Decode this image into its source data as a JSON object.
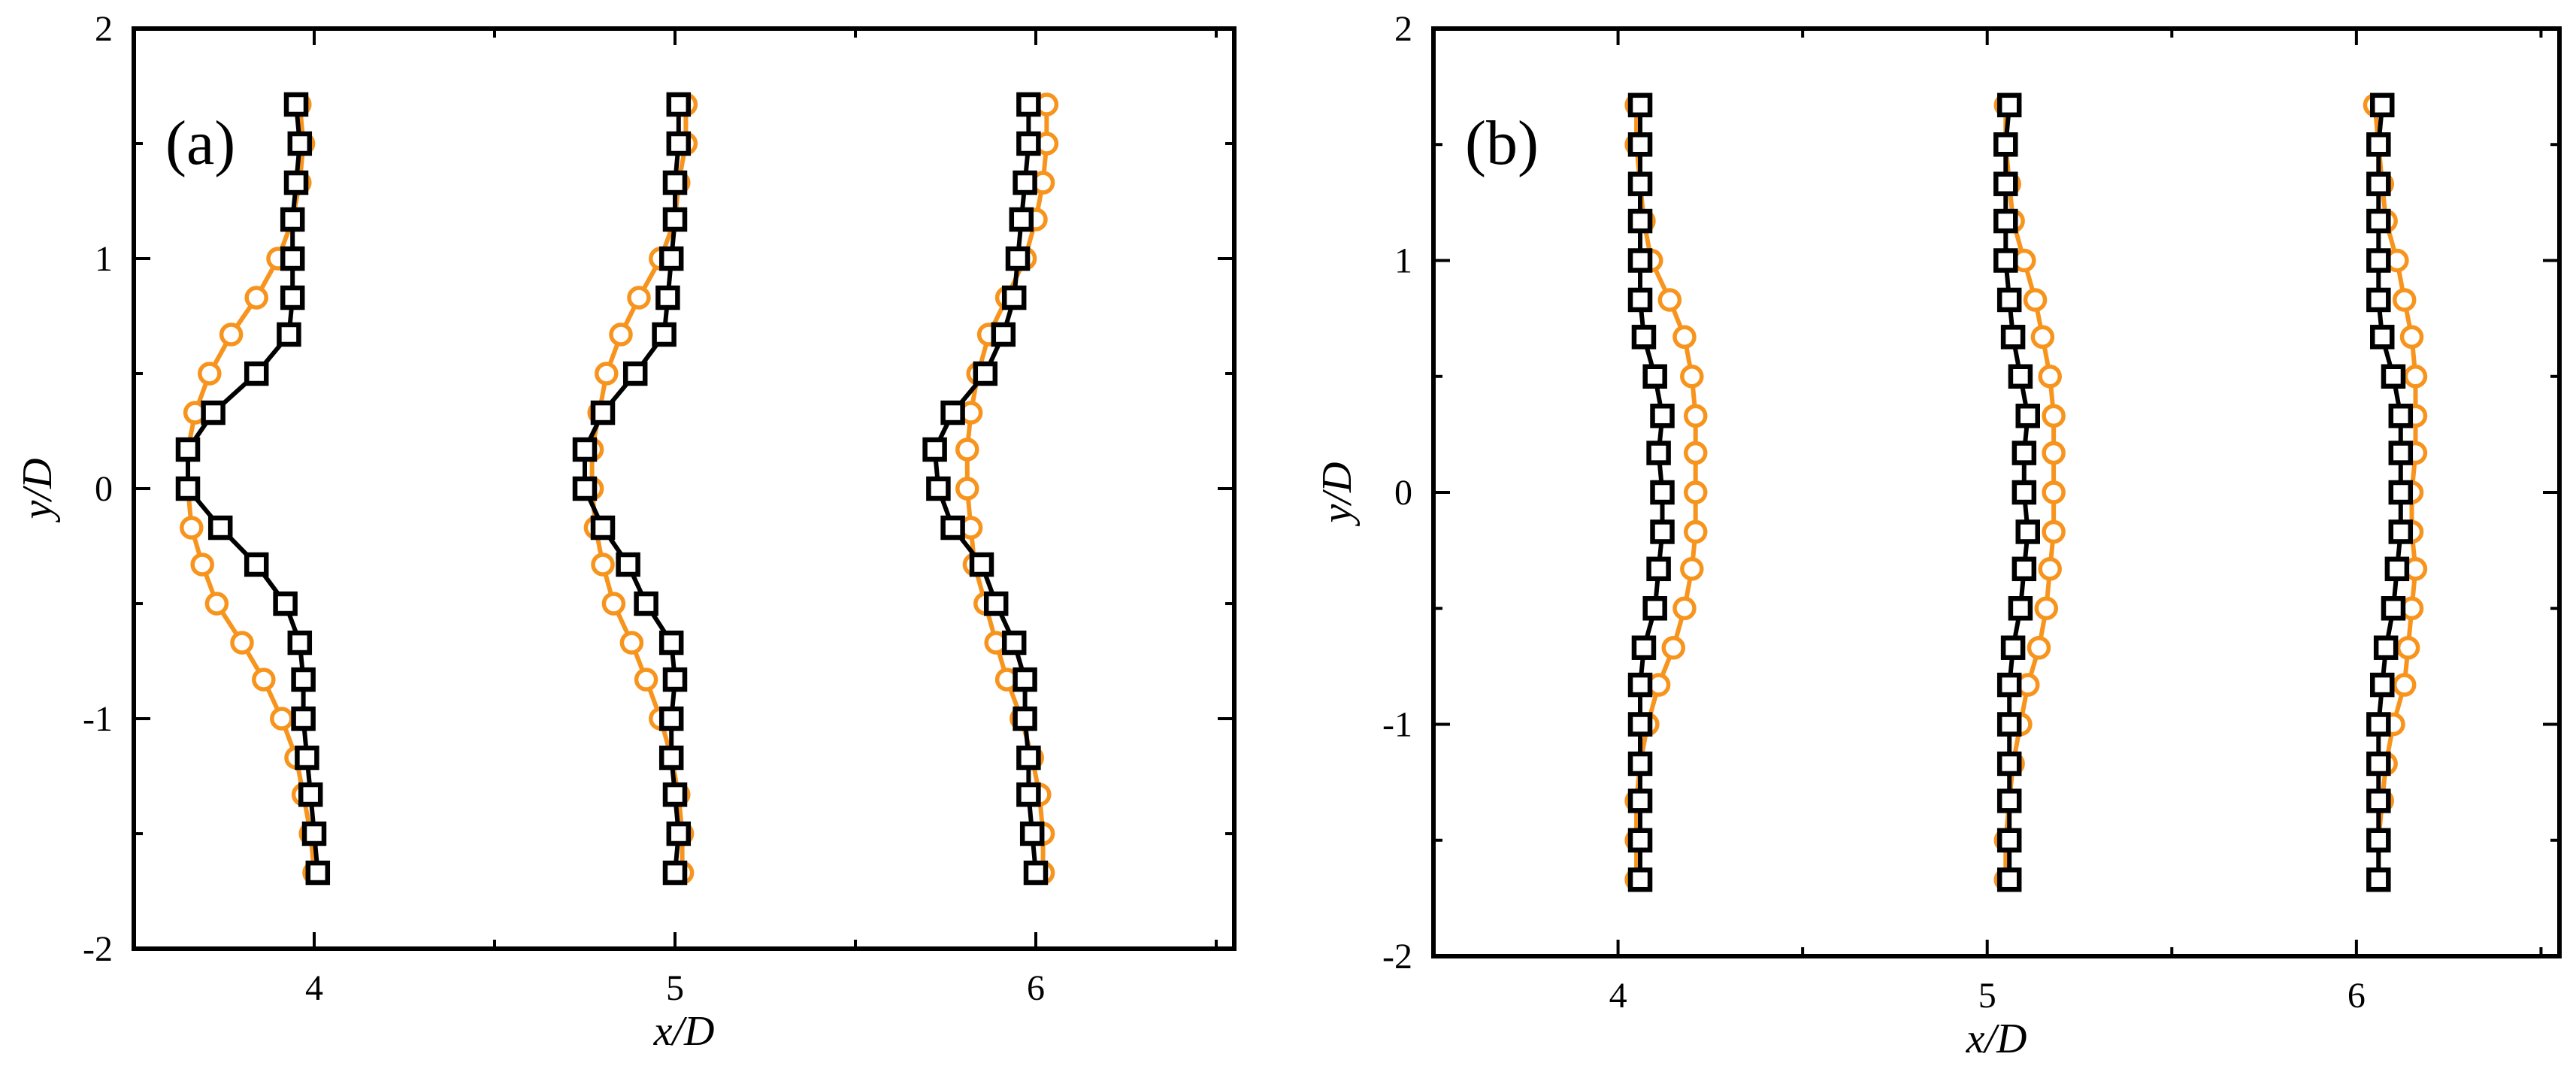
{
  "colors": {
    "series_a": "#F7941D",
    "series_b": "#000000",
    "axis": "#000000"
  },
  "chart_data": [
    {
      "type": "line",
      "panel": "(a)",
      "xlabel": "x/D",
      "ylabel": "y/D",
      "xlim": [
        3.5,
        6.55
      ],
      "ylim": [
        -2,
        2
      ],
      "xticks": [
        "4",
        "5",
        "6"
      ],
      "yticks": [
        "-2",
        "-1",
        "0",
        "1",
        "2"
      ],
      "marker_style": [
        "circle",
        "square"
      ],
      "y": [
        1.67,
        1.5,
        1.33,
        1.17,
        1.0,
        0.83,
        0.67,
        0.5,
        0.33,
        0.17,
        0.0,
        -0.17,
        -0.33,
        -0.5,
        -0.67,
        -0.83,
        -1.0,
        -1.17,
        -1.33,
        -1.5,
        -1.67
      ],
      "profiles": [
        {
          "station": 4,
          "series": [
            {
              "name": "series A (orange circles)",
              "x": [
                3.96,
                3.97,
                3.96,
                3.94,
                3.9,
                3.84,
                3.77,
                3.71,
                3.67,
                3.65,
                3.65,
                3.66,
                3.69,
                3.73,
                3.8,
                3.86,
                3.91,
                3.95,
                3.97,
                3.99,
                4.0
              ]
            },
            {
              "name": "series B (black squares)",
              "x": [
                3.95,
                3.96,
                3.95,
                3.94,
                3.94,
                3.94,
                3.93,
                3.84,
                3.72,
                3.65,
                3.65,
                3.74,
                3.84,
                3.92,
                3.96,
                3.97,
                3.97,
                3.98,
                3.99,
                4.0,
                4.01
              ]
            }
          ]
        },
        {
          "station": 5,
          "series": [
            {
              "name": "series A (orange circles)",
              "x": [
                5.03,
                5.03,
                5.01,
                5.0,
                4.96,
                4.9,
                4.85,
                4.81,
                4.79,
                4.77,
                4.77,
                4.78,
                4.8,
                4.83,
                4.88,
                4.92,
                4.96,
                4.99,
                5.01,
                5.02,
                5.02
              ]
            },
            {
              "name": "series B (black squares)",
              "x": [
                5.01,
                5.01,
                5.0,
                5.0,
                4.99,
                4.98,
                4.97,
                4.89,
                4.8,
                4.75,
                4.75,
                4.8,
                4.87,
                4.92,
                4.99,
                5.0,
                4.99,
                4.99,
                5.0,
                5.01,
                5.0
              ]
            }
          ]
        },
        {
          "station": 6,
          "series": [
            {
              "name": "series A (orange circles)",
              "x": [
                6.03,
                6.03,
                6.02,
                6.0,
                5.97,
                5.92,
                5.87,
                5.84,
                5.82,
                5.81,
                5.81,
                5.82,
                5.83,
                5.86,
                5.89,
                5.92,
                5.96,
                5.99,
                6.01,
                6.02,
                6.02
              ]
            },
            {
              "name": "series B (black squares)",
              "x": [
                5.98,
                5.98,
                5.97,
                5.96,
                5.95,
                5.94,
                5.91,
                5.86,
                5.77,
                5.72,
                5.73,
                5.77,
                5.85,
                5.89,
                5.94,
                5.97,
                5.97,
                5.98,
                5.98,
                5.99,
                6.0
              ]
            }
          ]
        }
      ]
    },
    {
      "type": "line",
      "panel": "(b)",
      "xlabel": "x/D",
      "ylabel": "y/D",
      "xlim": [
        3.5,
        6.55
      ],
      "ylim": [
        -2,
        2
      ],
      "xticks": [
        "4",
        "5",
        "6"
      ],
      "yticks": [
        "-2",
        "-1",
        "0",
        "1",
        "2"
      ],
      "marker_style": [
        "circle",
        "square"
      ],
      "y": [
        1.67,
        1.5,
        1.33,
        1.17,
        1.0,
        0.83,
        0.67,
        0.5,
        0.33,
        0.17,
        0.0,
        -0.17,
        -0.33,
        -0.5,
        -0.67,
        -0.83,
        -1.0,
        -1.17,
        -1.33,
        -1.5,
        -1.67
      ],
      "profiles": [
        {
          "station": 4,
          "series": [
            {
              "name": "series A (orange circles)",
              "x": [
                4.05,
                4.05,
                4.06,
                4.07,
                4.09,
                4.14,
                4.18,
                4.2,
                4.21,
                4.21,
                4.21,
                4.21,
                4.2,
                4.18,
                4.15,
                4.11,
                4.08,
                4.06,
                4.05,
                4.05,
                4.05
              ]
            },
            {
              "name": "series B (black squares)",
              "x": [
                4.06,
                4.06,
                4.06,
                4.06,
                4.06,
                4.06,
                4.07,
                4.1,
                4.12,
                4.11,
                4.12,
                4.12,
                4.11,
                4.1,
                4.07,
                4.06,
                4.06,
                4.06,
                4.06,
                4.06,
                4.06
              ]
            }
          ]
        },
        {
          "station": 5,
          "series": [
            {
              "name": "series A (orange circles)",
              "x": [
                5.05,
                5.05,
                5.06,
                5.07,
                5.1,
                5.13,
                5.15,
                5.17,
                5.18,
                5.18,
                5.18,
                5.18,
                5.17,
                5.16,
                5.14,
                5.11,
                5.09,
                5.07,
                5.06,
                5.05,
                5.05
              ]
            },
            {
              "name": "series B (black squares)",
              "x": [
                5.06,
                5.05,
                5.05,
                5.05,
                5.05,
                5.06,
                5.07,
                5.09,
                5.11,
                5.1,
                5.1,
                5.11,
                5.1,
                5.09,
                5.07,
                5.06,
                5.06,
                5.06,
                5.06,
                5.06,
                5.06
              ]
            }
          ]
        },
        {
          "station": 6,
          "series": [
            {
              "name": "series A (orange circles)",
              "x": [
                6.05,
                6.06,
                6.07,
                6.08,
                6.11,
                6.13,
                6.15,
                6.16,
                6.16,
                6.16,
                6.15,
                6.15,
                6.16,
                6.15,
                6.14,
                6.13,
                6.1,
                6.08,
                6.07,
                6.06,
                6.06
              ]
            },
            {
              "name": "series B (black squares)",
              "x": [
                6.07,
                6.06,
                6.06,
                6.06,
                6.06,
                6.06,
                6.07,
                6.1,
                6.12,
                6.12,
                6.12,
                6.12,
                6.11,
                6.1,
                6.08,
                6.07,
                6.06,
                6.06,
                6.06,
                6.06,
                6.06
              ]
            }
          ]
        }
      ]
    }
  ]
}
